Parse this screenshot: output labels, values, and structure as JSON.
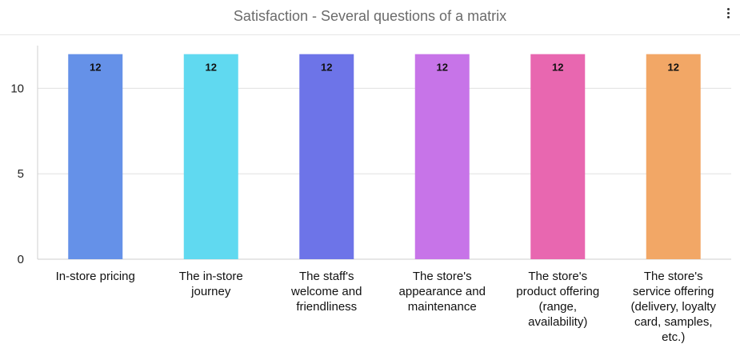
{
  "header": {
    "title": "Satisfaction - Several questions of a matrix",
    "menu_icon": "more-vertical-icon"
  },
  "chart_data": {
    "type": "bar",
    "title": "Satisfaction - Several questions of a matrix",
    "categories": [
      "In-store pricing",
      "The in-store journey",
      "The staff's welcome and friendliness",
      "The store's appearance and maintenance",
      "The store's product offering (range, availability)",
      "The store's service offering (delivery, loyalty card, samples, etc.)"
    ],
    "category_label_lines": [
      [
        "In-store pricing"
      ],
      [
        "The in-store",
        "journey"
      ],
      [
        "The staff's",
        "welcome and",
        "friendliness"
      ],
      [
        "The store's",
        "appearance and",
        "maintenance"
      ],
      [
        "The store's",
        "product offering",
        "(range,",
        "availability)"
      ],
      [
        "The store's",
        "service offering",
        "(delivery, loyalty",
        "card, samples,",
        "etc.)"
      ]
    ],
    "values": [
      12,
      12,
      12,
      12,
      12,
      12
    ],
    "data_labels": [
      "12",
      "12",
      "12",
      "12",
      "12",
      "12"
    ],
    "colors": [
      "#6591e8",
      "#60d9f0",
      "#6d74e8",
      "#c774e8",
      "#e867b0",
      "#f2a766"
    ],
    "yticks": [
      0,
      5,
      10
    ],
    "ylim": [
      0,
      12.5
    ],
    "grid": true,
    "legend": "none",
    "xlabel": "",
    "ylabel": ""
  }
}
